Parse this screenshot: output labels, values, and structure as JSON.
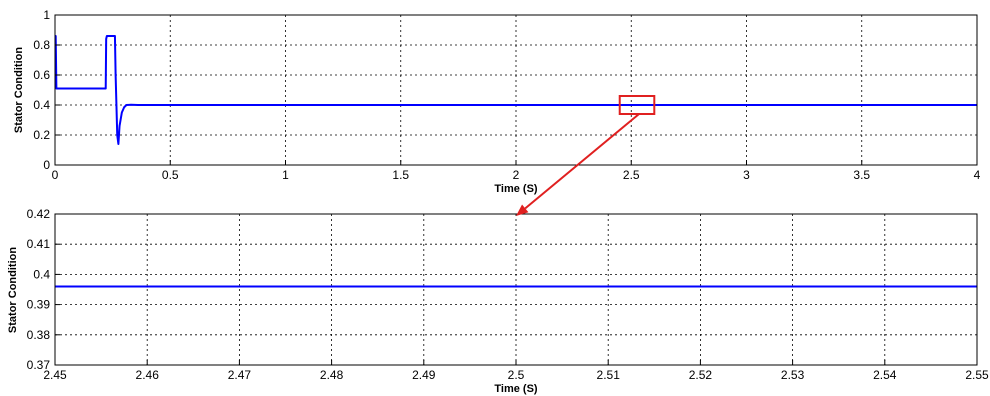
{
  "colors": {
    "series": "#0000ff",
    "annotation": "#e02020",
    "grid": "#000000",
    "background": "#ffffff"
  },
  "chart_data": [
    {
      "type": "line",
      "title": "",
      "xlabel": "Time (S)",
      "ylabel": "Stator Condition",
      "xlim": [
        0,
        4
      ],
      "ylim": [
        0,
        1
      ],
      "xticks": [
        "0",
        "0.5",
        "1",
        "1.5",
        "2",
        "2.5",
        "3",
        "3.5",
        "4"
      ],
      "xtick_values": [
        0,
        0.5,
        1,
        1.5,
        2,
        2.5,
        3,
        3.5,
        4
      ],
      "yticks": [
        "0",
        "0.2",
        "0.4",
        "0.6",
        "0.8",
        "1"
      ],
      "ytick_values": [
        0,
        0.2,
        0.4,
        0.6,
        0.8,
        1
      ],
      "grid": true,
      "series": [
        {
          "x": [
            0,
            0.003,
            0.006,
            0.22,
            0.222,
            0.225,
            0.235,
            0.26,
            0.263,
            0.27,
            0.275,
            0.28,
            0.29,
            0.3,
            0.31,
            0.33,
            0.36,
            4
          ],
          "y": [
            0.86,
            0.86,
            0.51,
            0.51,
            0.84,
            0.86,
            0.86,
            0.86,
            0.6,
            0.2,
            0.14,
            0.26,
            0.35,
            0.385,
            0.4,
            0.402,
            0.4,
            0.4
          ]
        }
      ],
      "annotation": {
        "type": "zoom-box",
        "x_range": [
          2.45,
          2.6
        ],
        "y_range": [
          0.34,
          0.46
        ],
        "arrow_target": "lower plot"
      }
    },
    {
      "type": "line",
      "title": "",
      "xlabel": "Time (S)",
      "ylabel": "Stator Condition",
      "xlim": [
        2.45,
        2.55
      ],
      "ylim": [
        0.37,
        0.42
      ],
      "xticks": [
        "2.45",
        "2.46",
        "2.47",
        "2.48",
        "2.49",
        "2.5",
        "2.51",
        "2.52",
        "2.53",
        "2.54",
        "2.55"
      ],
      "xtick_values": [
        2.45,
        2.46,
        2.47,
        2.48,
        2.49,
        2.5,
        2.51,
        2.52,
        2.53,
        2.54,
        2.55
      ],
      "yticks": [
        "0.37",
        "0.38",
        "0.39",
        "0.4",
        "0.41",
        "0.42"
      ],
      "ytick_values": [
        0.37,
        0.38,
        0.39,
        0.4,
        0.41,
        0.42
      ],
      "grid": true,
      "series": [
        {
          "x": [
            2.45,
            2.55
          ],
          "y": [
            0.396,
            0.396
          ]
        }
      ]
    }
  ]
}
